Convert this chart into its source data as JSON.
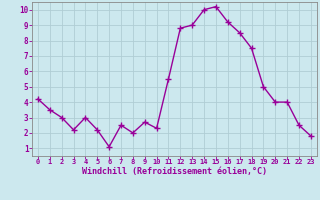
{
  "x": [
    0,
    1,
    2,
    3,
    4,
    5,
    6,
    7,
    8,
    9,
    10,
    11,
    12,
    13,
    14,
    15,
    16,
    17,
    18,
    19,
    20,
    21,
    22,
    23
  ],
  "y": [
    4.2,
    3.5,
    3.0,
    2.2,
    3.0,
    2.2,
    1.1,
    2.5,
    2.0,
    2.7,
    2.3,
    5.5,
    8.8,
    9.0,
    10.0,
    10.2,
    9.2,
    8.5,
    7.5,
    5.0,
    4.0,
    4.0,
    2.5,
    1.8
  ],
  "line_color": "#990099",
  "marker": "+",
  "marker_size": 4,
  "bg_color": "#cce8ee",
  "grid_color": "#b0cdd4",
  "xlabel": "Windchill (Refroidissement éolien,°C)",
  "xlim": [
    -0.5,
    23.5
  ],
  "ylim": [
    0.5,
    10.5
  ],
  "xticks": [
    0,
    1,
    2,
    3,
    4,
    5,
    6,
    7,
    8,
    9,
    10,
    11,
    12,
    13,
    14,
    15,
    16,
    17,
    18,
    19,
    20,
    21,
    22,
    23
  ],
  "yticks": [
    1,
    2,
    3,
    4,
    5,
    6,
    7,
    8,
    9,
    10
  ],
  "tick_label_color": "#990099",
  "xlabel_color": "#990099",
  "line_width": 1.0,
  "axis_color": "#888888",
  "spine_color": "#888888"
}
